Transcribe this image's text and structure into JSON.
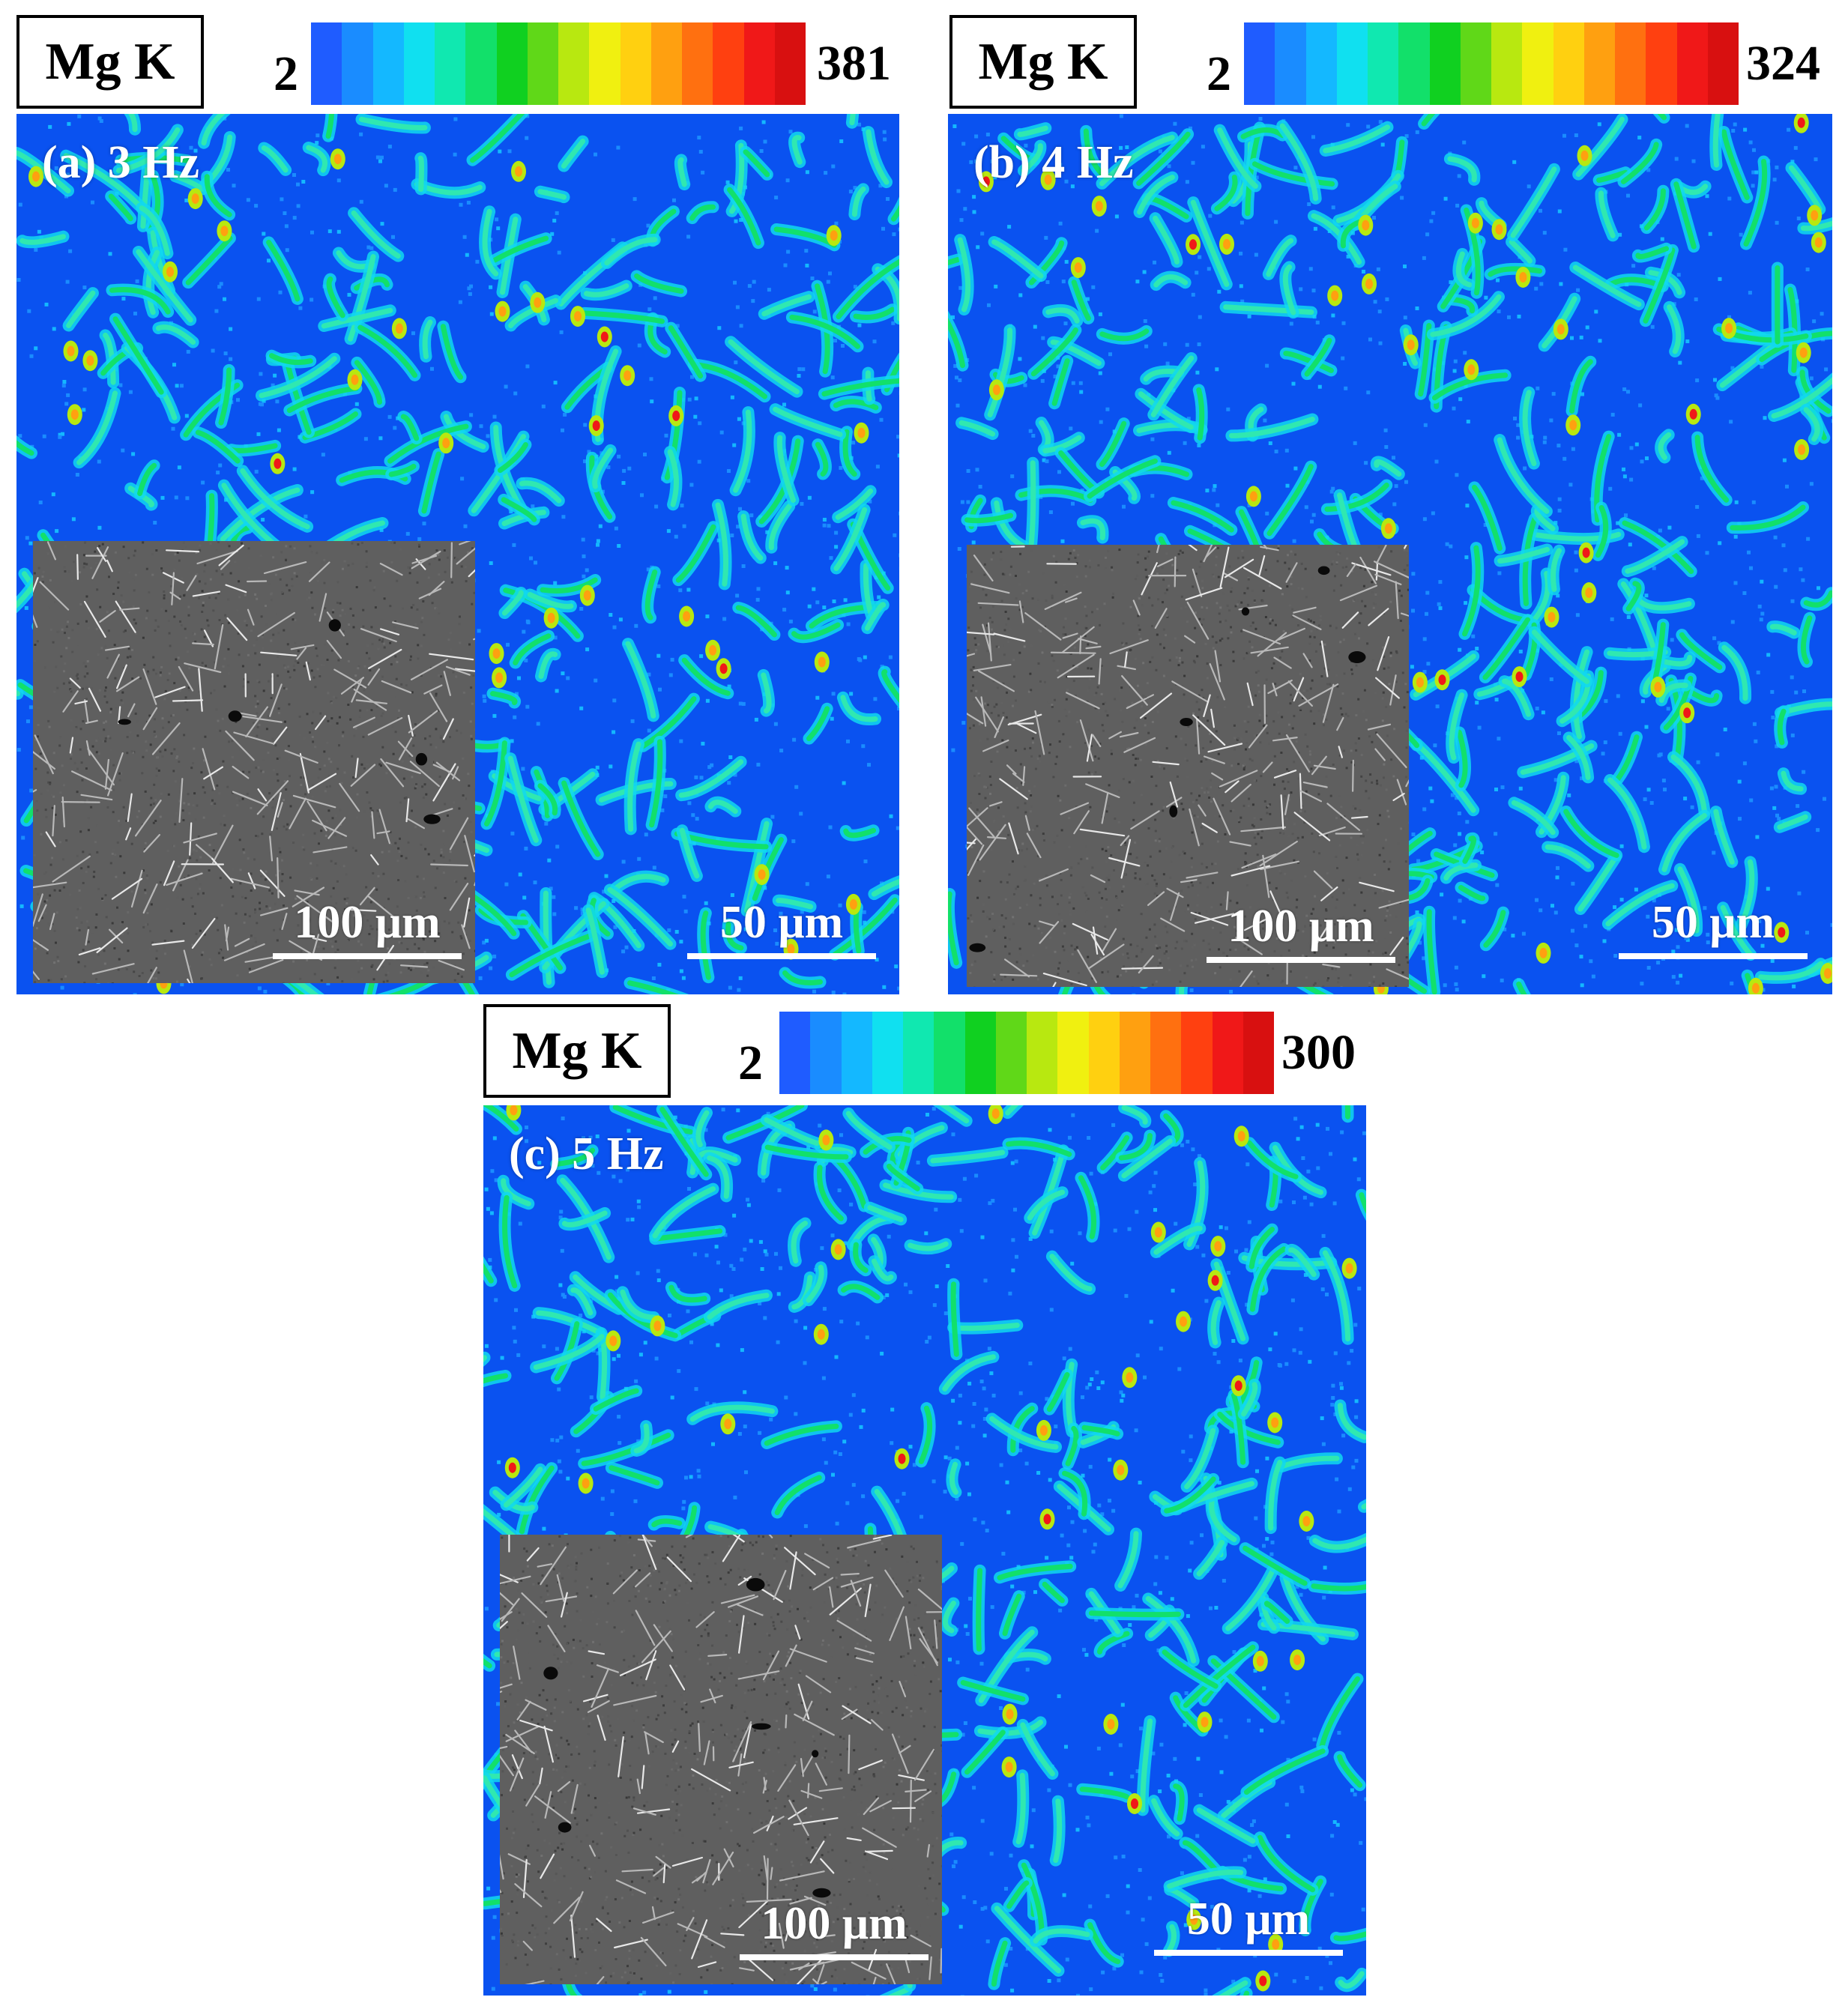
{
  "colors": {
    "map_background": "#0a52f0",
    "colormap": [
      "#1f5cff",
      "#1a8cff",
      "#14b8ff",
      "#10e0f0",
      "#10e8b0",
      "#12e06a",
      "#10d020",
      "#60d818",
      "#b8e810",
      "#f0f010",
      "#ffd010",
      "#ffa010",
      "#ff7010",
      "#ff4010",
      "#f01818",
      "#d81010"
    ]
  },
  "panels": [
    {
      "id": "a",
      "element": "Mg K",
      "scale_min": "2",
      "scale_max": "381",
      "label": "(a) 3 Hz",
      "inset_scale": "100 μm",
      "map_scale": "50 μm"
    },
    {
      "id": "b",
      "element": "Mg K",
      "scale_min": "2",
      "scale_max": "324",
      "label": "(b) 4 Hz",
      "inset_scale": "100 μm",
      "map_scale": "50 μm"
    },
    {
      "id": "c",
      "element": "Mg K",
      "scale_min": "2",
      "scale_max": "300",
      "label": "(c) 5 Hz",
      "inset_scale": "100 μm",
      "map_scale": "50 μm"
    }
  ]
}
